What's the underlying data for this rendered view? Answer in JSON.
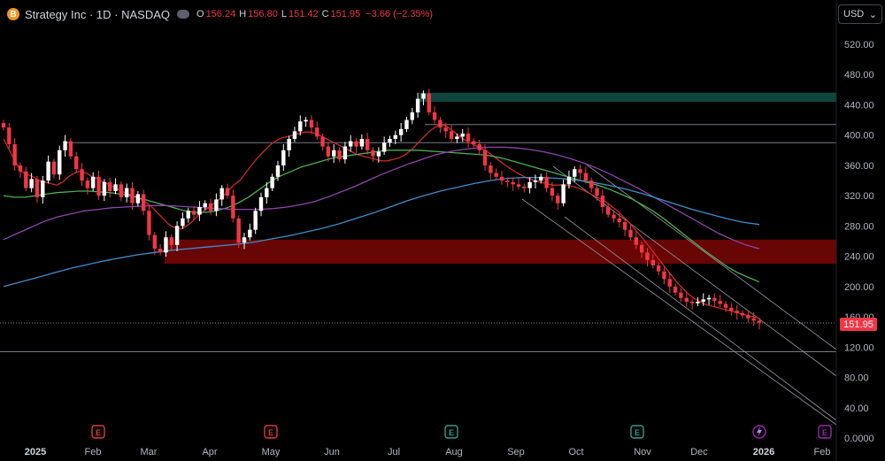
{
  "header": {
    "logo_letter": "B",
    "symbol": "Strategy Inc · 1D · NASDAQ",
    "ohlc": [
      {
        "label": "O",
        "value": "156.24"
      },
      {
        "label": "H",
        "value": "156.80"
      },
      {
        "label": "L",
        "value": "151.42"
      },
      {
        "label": "C",
        "value": "151.95"
      }
    ],
    "change": "−3.66 (−2.35%)"
  },
  "currency": {
    "value": "USD"
  },
  "last_price_label": "151.95",
  "colors": {
    "up": "#ffffff",
    "down": "#f23645",
    "ma_red": "#cc2a2a",
    "ma_green": "#4caf50",
    "ma_purple": "#8e44ad",
    "ma_blue": "#3d8ec9",
    "resistance_zone": "#0f4a40",
    "support_zone": "#6e0505"
  },
  "chart_data": {
    "type": "candlestick",
    "y_range": [
      0,
      540
    ],
    "y_ticks": [
      "520.00",
      "480.00",
      "440.00",
      "400.00",
      "360.00",
      "320.00",
      "280.00",
      "240.00",
      "200.00",
      "160.00",
      "120.00",
      "80.00",
      "40.00",
      "0.0000"
    ],
    "x_labels": [
      "2025",
      "Feb",
      "Mar",
      "Apr",
      "May",
      "Jun",
      "Jul",
      "Aug",
      "Sep",
      "Oct",
      "Nov",
      "Dec",
      "2026",
      "Feb"
    ],
    "series_close": [
      410,
      388,
      360,
      352,
      330,
      342,
      318,
      340,
      365,
      348,
      380,
      392,
      372,
      355,
      340,
      330,
      345,
      320,
      338,
      326,
      335,
      318,
      330,
      310,
      322,
      300,
      268,
      250,
      245,
      265,
      255,
      280,
      290,
      300,
      295,
      305,
      310,
      300,
      315,
      330,
      320,
      290,
      258,
      265,
      275,
      300,
      318,
      330,
      345,
      360,
      380,
      395,
      405,
      418,
      420,
      410,
      398,
      385,
      372,
      380,
      368,
      385,
      392,
      385,
      395,
      380,
      372,
      378,
      390,
      395,
      400,
      408,
      420,
      430,
      448,
      455,
      430,
      420,
      410,
      405,
      395,
      398,
      402,
      392,
      388,
      380,
      360,
      350,
      345,
      340,
      338,
      335,
      332,
      330,
      338,
      340,
      345,
      330,
      320,
      310,
      335,
      345,
      355,
      350,
      340,
      330,
      320,
      305,
      295,
      290,
      285,
      275,
      265,
      255,
      245,
      235,
      228,
      220,
      210,
      200,
      192,
      185,
      180,
      178,
      180,
      183,
      185,
      181,
      177,
      172,
      168,
      165,
      162,
      158,
      155,
      151.95
    ],
    "ma": [
      {
        "values": [
          395,
          380,
          365,
          352,
          348,
          345,
          340,
          338,
          336,
          334,
          338,
          345,
          350,
          352,
          350,
          345,
          342,
          338,
          334,
          330,
          326,
          322,
          320,
          316,
          312,
          306,
          298,
          290,
          282,
          278,
          276,
          280,
          286,
          294,
          300,
          306,
          312,
          318,
          326,
          334,
          340,
          350,
          360,
          370,
          378,
          386,
          392,
          396,
          398,
          400,
          402,
          404,
          404,
          402,
          398,
          394,
          390,
          386,
          382,
          378,
          374,
          372,
          370,
          368,
          366,
          366,
          368,
          370,
          374,
          380,
          388,
          396,
          404,
          410,
          414,
          412,
          406,
          400,
          394,
          390,
          386,
          382,
          378,
          372,
          366,
          360,
          355,
          350,
          346,
          342,
          340,
          338,
          336,
          334,
          334,
          334,
          333,
          331,
          328,
          324,
          320,
          316,
          312,
          306,
          300,
          292,
          284,
          275,
          266,
          256,
          246,
          236,
          226,
          216,
          206,
          198,
          190,
          184,
          180,
          176,
          174,
          172,
          170,
          168,
          166,
          164,
          162,
          160,
          158
        ]
      },
      {
        "values": [
          320,
          318,
          318,
          320,
          322,
          324,
          325,
          326,
          326,
          325,
          324,
          322,
          320,
          316,
          312,
          308,
          304,
          300,
          298,
          298,
          300,
          304,
          310,
          318,
          328,
          338,
          346,
          352,
          358,
          362,
          366,
          370,
          372,
          374,
          376,
          378,
          380,
          380,
          380,
          380,
          379,
          378,
          377,
          376,
          375,
          374,
          372,
          369,
          365,
          361,
          357,
          353,
          349,
          345,
          341,
          337,
          333,
          328,
          322,
          316,
          308,
          300,
          290,
          279,
          268,
          257,
          246,
          236,
          226,
          218,
          212,
          206
        ]
      },
      {
        "values": [
          262,
          270,
          278,
          286,
          292,
          296,
          300,
          302,
          304,
          305,
          306,
          307,
          307,
          306,
          305,
          304,
          303,
          302,
          302,
          302,
          303,
          305,
          308,
          312,
          318,
          325,
          332,
          340,
          348,
          355,
          362,
          368,
          374,
          378,
          381,
          383,
          384,
          384,
          383,
          381,
          378,
          374,
          369,
          363,
          356,
          348,
          339,
          330,
          320,
          310,
          300,
          290,
          280,
          270,
          262,
          255,
          250
        ]
      },
      {
        "values": [
          200,
          206,
          212,
          218,
          224,
          229,
          234,
          238,
          242,
          245,
          248,
          250,
          252,
          254,
          256,
          259,
          263,
          267,
          272,
          277,
          283,
          290,
          297,
          305,
          313,
          320,
          326,
          331,
          336,
          340,
          343,
          344,
          344,
          343,
          341,
          338,
          334,
          329,
          323,
          316,
          309,
          302,
          296,
          290,
          285,
          282
        ]
      }
    ],
    "zones": [
      {
        "y0": 444,
        "y1": 456
      },
      {
        "y0": 230,
        "y1": 262
      }
    ],
    "levels": [
      414,
      390,
      114
    ],
    "current_price": 151.95
  }
}
